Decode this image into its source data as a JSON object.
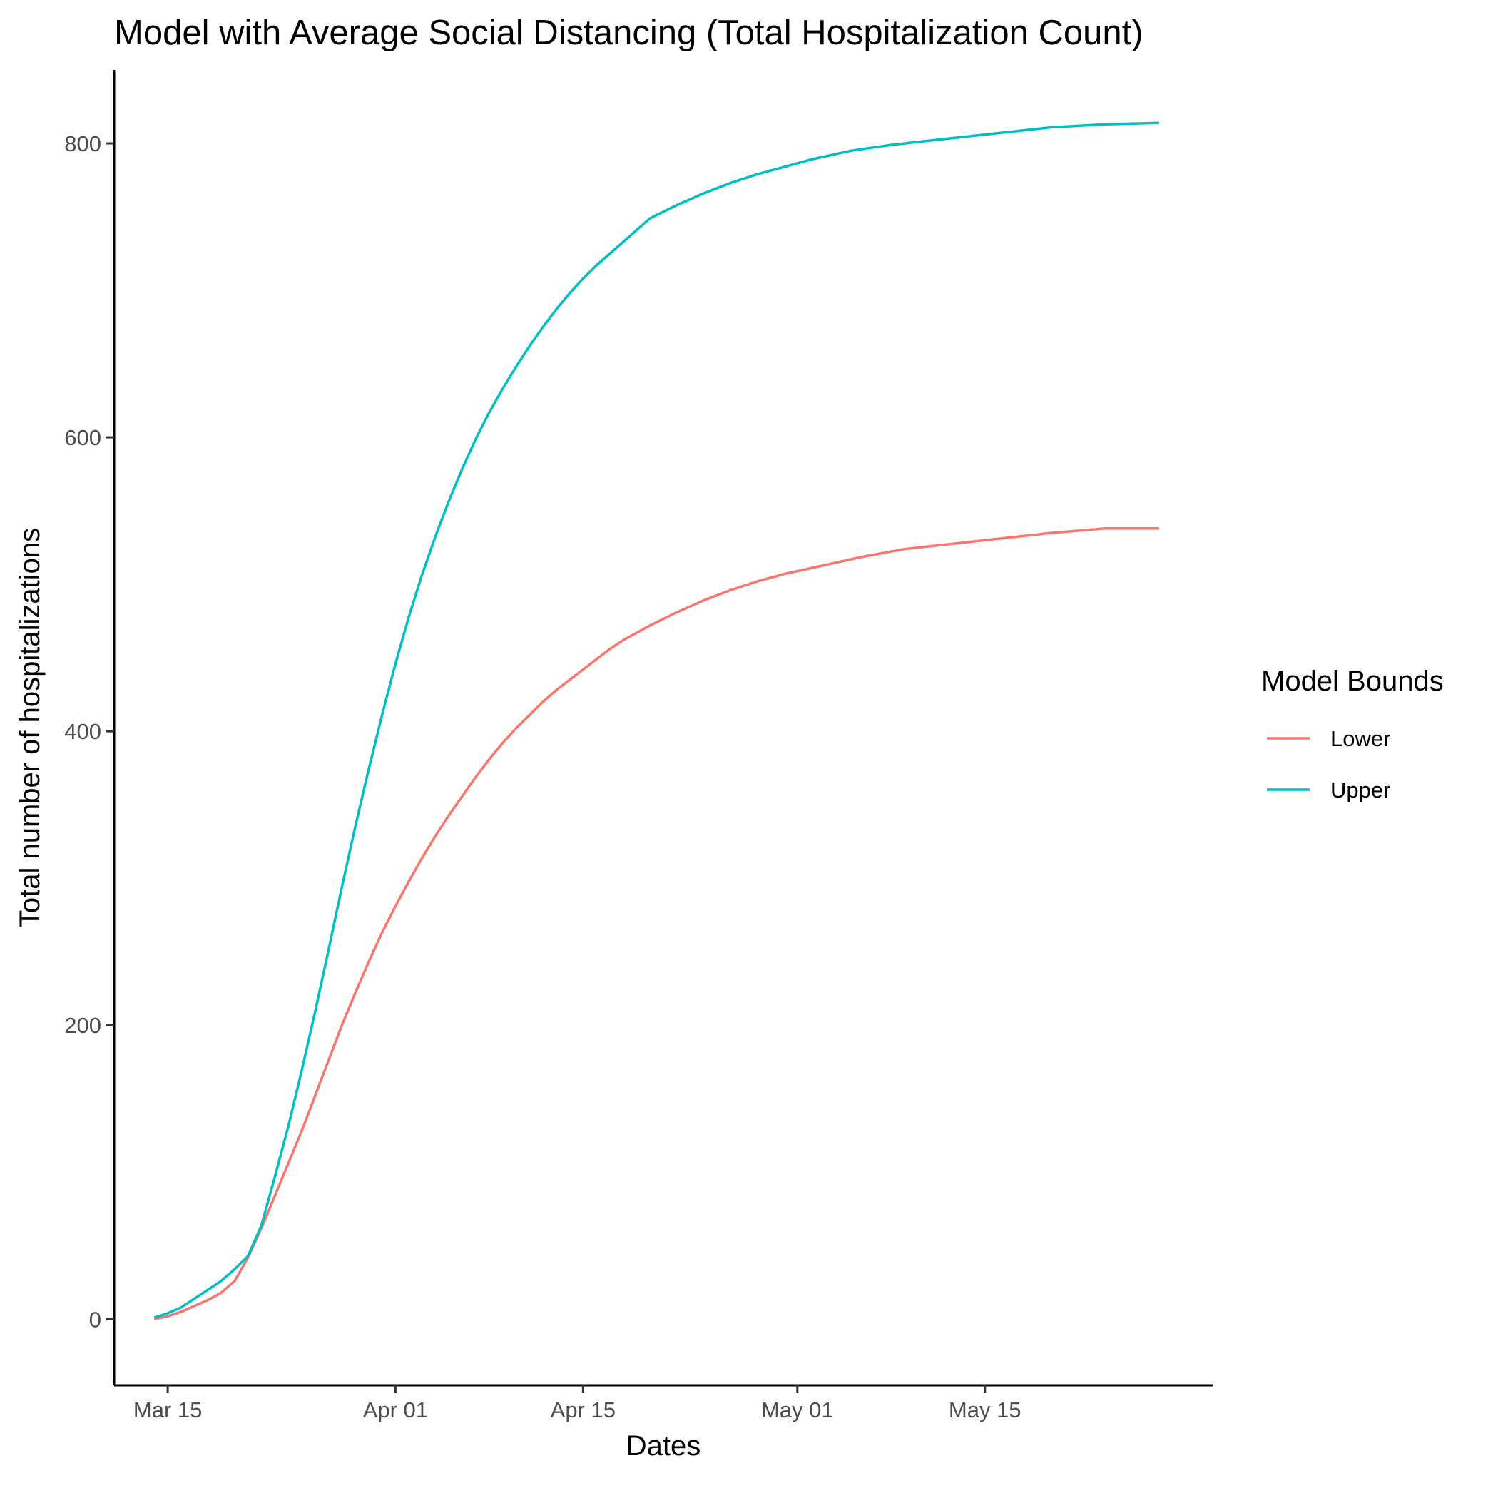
{
  "chart_data": {
    "type": "line",
    "title": "Model with Average Social Distancing (Total Hospitalization Count)",
    "xlabel": "Dates",
    "ylabel": "Total number of hospitalizations",
    "x_tick_labels": [
      "Mar 15",
      "Apr 01",
      "Apr 15",
      "May 01",
      "May 15"
    ],
    "x_tick_dates": [
      "2020-03-15",
      "2020-04-01",
      "2020-04-15",
      "2020-05-01",
      "2020-05-15"
    ],
    "y_ticks": [
      0,
      200,
      400,
      600,
      800
    ],
    "xlim": [
      "2020-03-11",
      "2020-06-01"
    ],
    "ylim": [
      -45,
      850
    ],
    "grid": false,
    "legend": {
      "title": "Model Bounds",
      "position": "right"
    },
    "series": [
      {
        "name": "Lower",
        "color": "#F8766D",
        "x": [
          "2020-03-14",
          "2020-03-15",
          "2020-03-16",
          "2020-03-17",
          "2020-03-18",
          "2020-03-19",
          "2020-03-20",
          "2020-03-21",
          "2020-03-22",
          "2020-03-23",
          "2020-03-24",
          "2020-03-25",
          "2020-03-26",
          "2020-03-27",
          "2020-03-28",
          "2020-03-29",
          "2020-03-30",
          "2020-03-31",
          "2020-04-01",
          "2020-04-02",
          "2020-04-03",
          "2020-04-04",
          "2020-04-05",
          "2020-04-06",
          "2020-04-07",
          "2020-04-08",
          "2020-04-09",
          "2020-04-10",
          "2020-04-11",
          "2020-04-12",
          "2020-04-13",
          "2020-04-14",
          "2020-04-15",
          "2020-04-16",
          "2020-04-17",
          "2020-04-18",
          "2020-04-19",
          "2020-04-20",
          "2020-04-22",
          "2020-04-24",
          "2020-04-26",
          "2020-04-28",
          "2020-04-30",
          "2020-05-02",
          "2020-05-04",
          "2020-05-06",
          "2020-05-09",
          "2020-05-12",
          "2020-05-16",
          "2020-05-20",
          "2020-05-24",
          "2020-05-28"
        ],
        "y": [
          0,
          2,
          5,
          9,
          13,
          18,
          26,
          42,
          62,
          84,
          106,
          128,
          152,
          176,
          200,
          222,
          243,
          263,
          281,
          298,
          314,
          329,
          343,
          356,
          369,
          381,
          392,
          402,
          411,
          420,
          428,
          435,
          442,
          449,
          456,
          462,
          467,
          472,
          481,
          489,
          496,
          502,
          507,
          511,
          515,
          519,
          524,
          527,
          531,
          535,
          538,
          538
        ]
      },
      {
        "name": "Upper",
        "color": "#00BFC4",
        "x": [
          "2020-03-14",
          "2020-03-15",
          "2020-03-16",
          "2020-03-17",
          "2020-03-18",
          "2020-03-19",
          "2020-03-20",
          "2020-03-21",
          "2020-03-22",
          "2020-03-23",
          "2020-03-24",
          "2020-03-25",
          "2020-03-26",
          "2020-03-27",
          "2020-03-28",
          "2020-03-29",
          "2020-03-30",
          "2020-03-31",
          "2020-04-01",
          "2020-04-02",
          "2020-04-03",
          "2020-04-04",
          "2020-04-05",
          "2020-04-06",
          "2020-04-07",
          "2020-04-08",
          "2020-04-09",
          "2020-04-10",
          "2020-04-11",
          "2020-04-12",
          "2020-04-13",
          "2020-04-14",
          "2020-04-15",
          "2020-04-16",
          "2020-04-17",
          "2020-04-18",
          "2020-04-19",
          "2020-04-20",
          "2020-04-22",
          "2020-04-24",
          "2020-04-26",
          "2020-04-28",
          "2020-04-30",
          "2020-05-02",
          "2020-05-05",
          "2020-05-08",
          "2020-05-12",
          "2020-05-16",
          "2020-05-20",
          "2020-05-24",
          "2020-05-28"
        ],
        "y": [
          1,
          4,
          8,
          14,
          20,
          26,
          34,
          43,
          64,
          97,
          131,
          169,
          209,
          251,
          294,
          335,
          374,
          411,
          446,
          478,
          507,
          533,
          557,
          579,
          599,
          617,
          633,
          648,
          662,
          675,
          687,
          698,
          708,
          717,
          725,
          733,
          741,
          749,
          758,
          766,
          773,
          779,
          784,
          789,
          795,
          799,
          803,
          807,
          811,
          813,
          814
        ]
      }
    ]
  }
}
